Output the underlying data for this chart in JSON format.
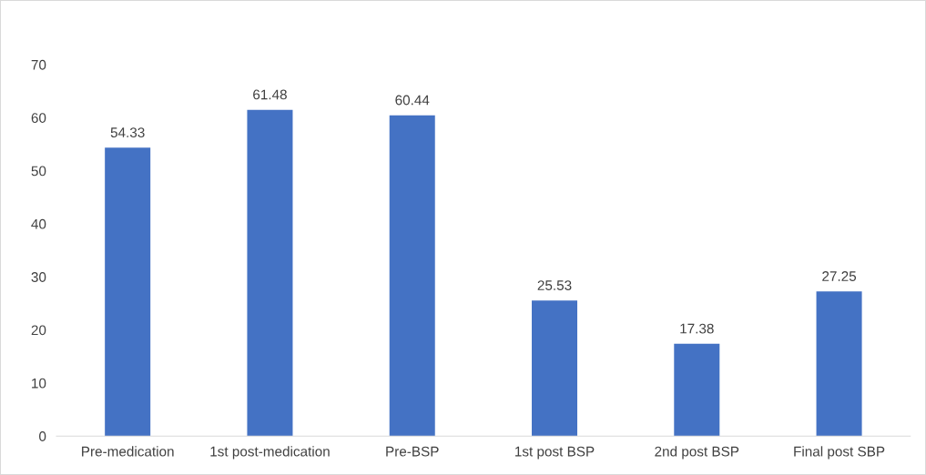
{
  "chart_data": {
    "type": "bar",
    "categories": [
      "Pre-medication",
      "1st post-medication",
      "Pre-BSP",
      "1st post BSP",
      "2nd post BSP",
      "Final post SBP"
    ],
    "values": [
      54.33,
      61.48,
      60.44,
      25.53,
      17.38,
      27.25
    ],
    "color": "#4472c4",
    "ylim": [
      0,
      70
    ],
    "yticks": [
      0,
      10,
      20,
      30,
      40,
      50,
      60,
      70
    ],
    "grid": false,
    "legend": false,
    "data_labels": true
  }
}
